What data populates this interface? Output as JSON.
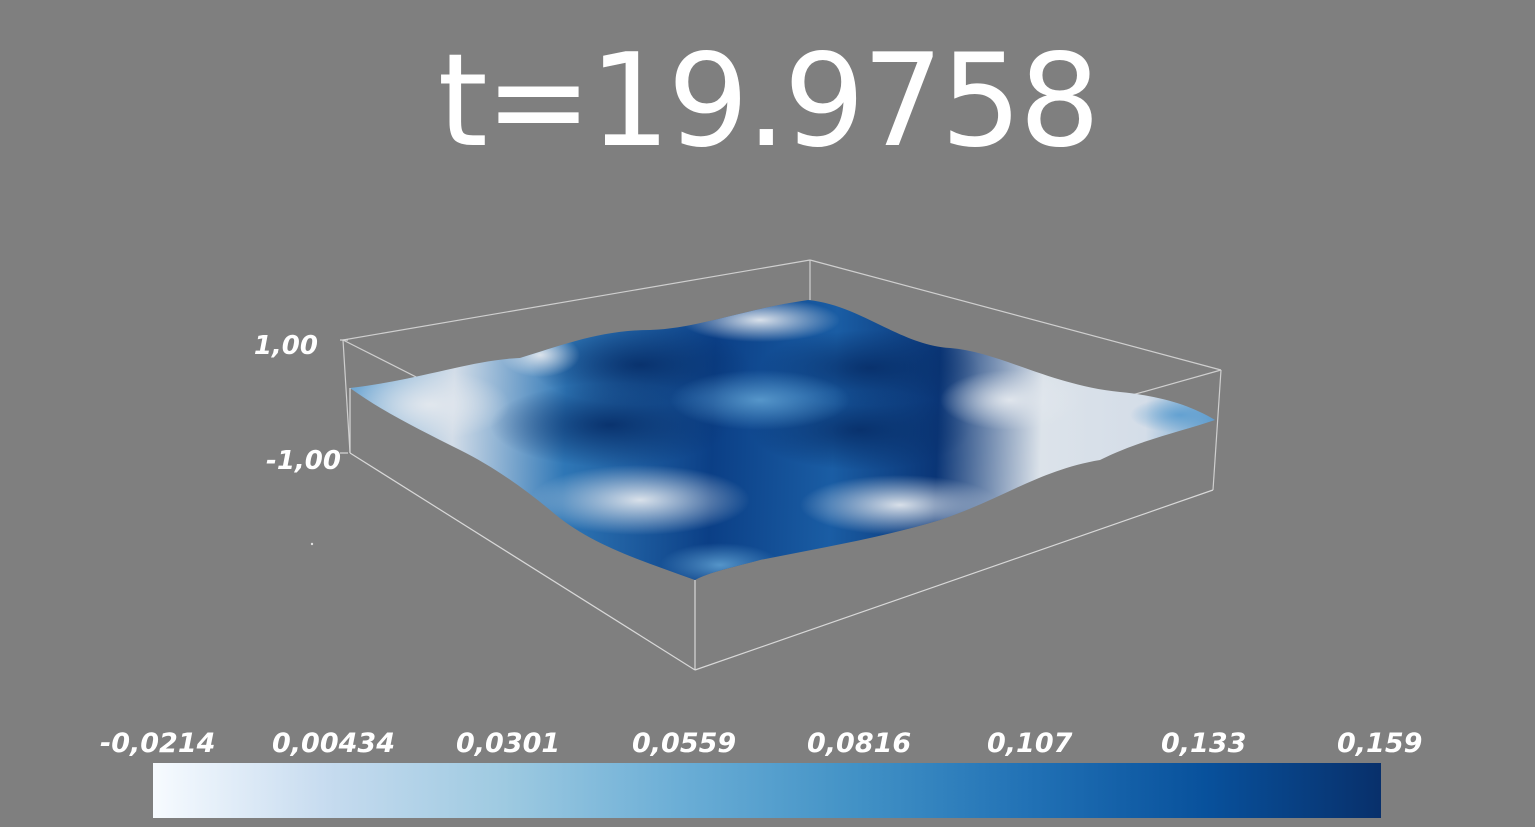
{
  "time_annotation": "t=19.9758",
  "z_axis": {
    "top_label": "1,00",
    "bottom_label": "-1,00"
  },
  "surface": {
    "scalar_range": [
      -0.0214,
      0.159
    ],
    "wave_pattern": "2x2 periodic bumps"
  },
  "color_legend": {
    "colormap": "Blues",
    "colors": [
      "#f7fbff",
      "#c6dbef",
      "#9ecae1",
      "#6baed6",
      "#4292c6",
      "#2171b5",
      "#08519c",
      "#08306b"
    ],
    "ticks": [
      "-0,0214",
      "0,00434",
      "0,0301",
      "0,0559",
      "0,0816",
      "0,107",
      "0,133",
      "0,159"
    ]
  },
  "colors": {
    "background": "#7f7f7f",
    "bounding_box": "#cfcfcf",
    "text": "#ffffff"
  }
}
